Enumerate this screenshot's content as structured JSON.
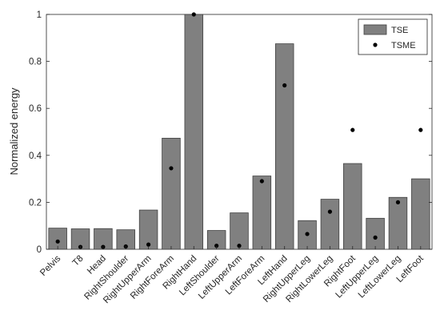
{
  "chart_data": {
    "type": "bar",
    "title": "",
    "xlabel": "",
    "ylabel": "Normalized energy",
    "ylim": [
      0,
      1
    ],
    "yticks": [
      0,
      0.2,
      0.4,
      0.6,
      0.8,
      1
    ],
    "ytick_labels": [
      "0",
      "0.2",
      "0.4",
      "0.6",
      "0.8",
      "1"
    ],
    "grid": false,
    "legend_position": "top-right",
    "categories": [
      "Pelvis",
      "T8",
      "Head",
      "RightShoulder",
      "RightUpperArm",
      "RightForeArm",
      "RightHand",
      "LeftShoulder",
      "LeftUpperArm",
      "LeftForeArm",
      "LeftHand",
      "RightUpperLeg",
      "RightLowerLeg",
      "RightFoot",
      "LeftUpperLeg",
      "LeftLowerLeg",
      "LeftFoot"
    ],
    "series": [
      {
        "name": "TSE",
        "kind": "bar",
        "color": "#808080",
        "values": [
          0.09,
          0.087,
          0.088,
          0.083,
          0.167,
          0.473,
          1.0,
          0.08,
          0.155,
          0.312,
          0.875,
          0.122,
          0.213,
          0.365,
          0.132,
          0.221,
          0.3
        ]
      },
      {
        "name": "TSME",
        "kind": "marker",
        "color": "#000000",
        "values": [
          0.033,
          0.01,
          0.01,
          0.012,
          0.02,
          0.345,
          1.0,
          0.015,
          0.015,
          0.29,
          0.698,
          0.065,
          0.16,
          0.508,
          0.05,
          0.2,
          0.508
        ]
      }
    ]
  }
}
